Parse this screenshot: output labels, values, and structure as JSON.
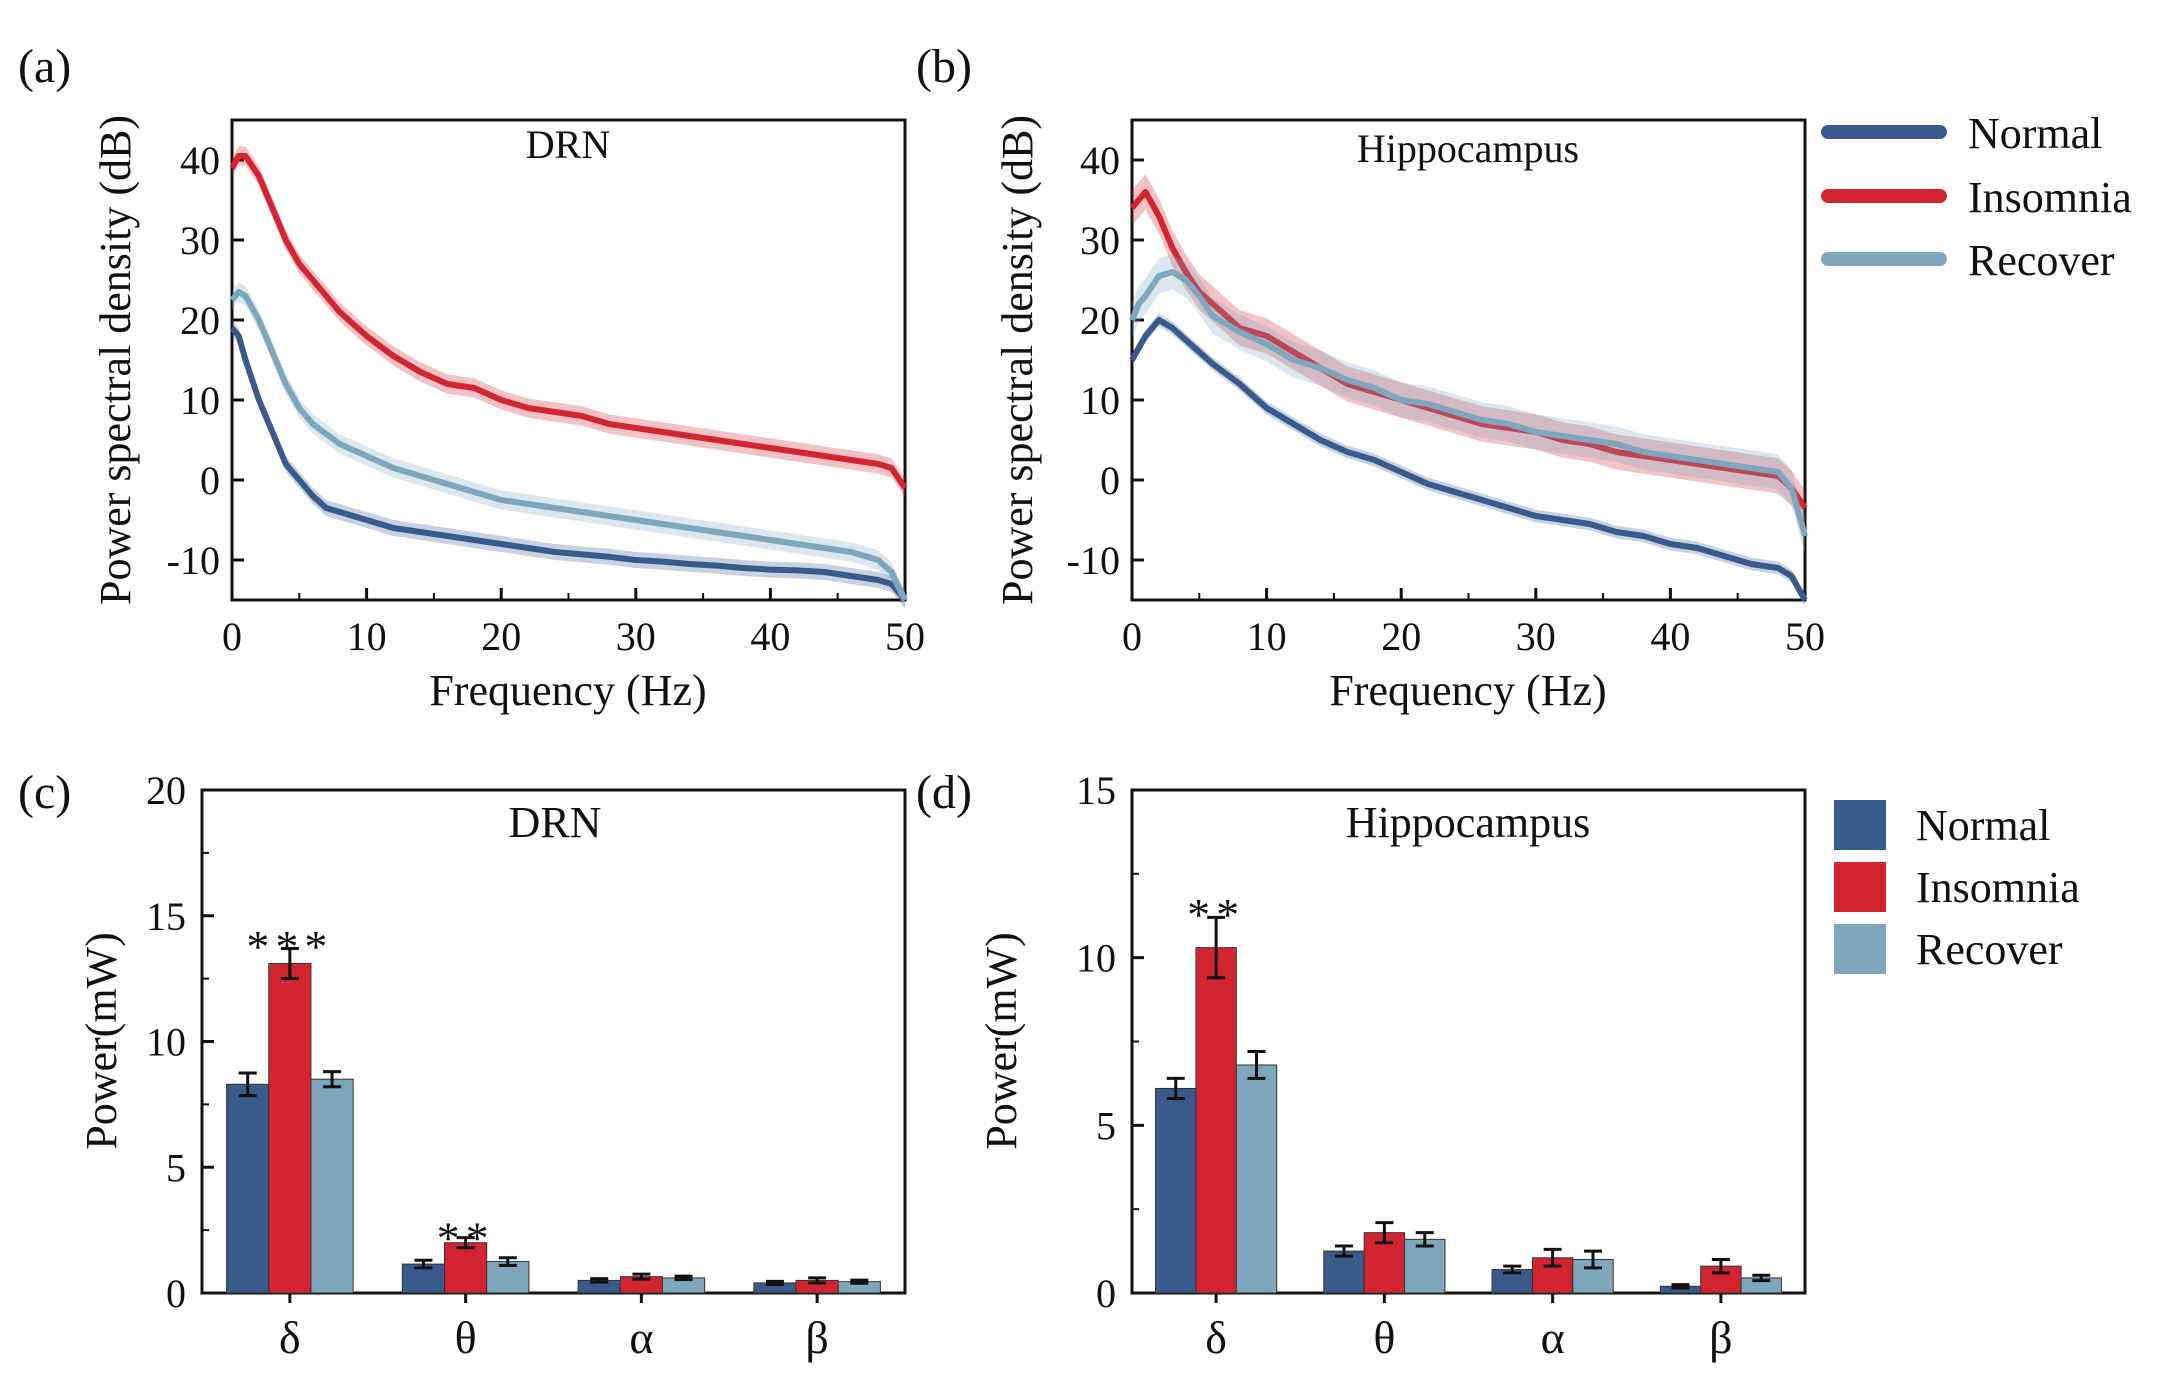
{
  "colors": {
    "normal": "#3b5a8c",
    "insomnia": "#d32531",
    "recover": "#7ea7bd"
  },
  "chart_data": [
    {
      "id": "a",
      "panel_label": "(a)",
      "type": "line",
      "title": "DRN",
      "xlabel": "Frequency (Hz)",
      "ylabel": "Power spectral density (dB)",
      "xlim": [
        0,
        50
      ],
      "ylim": [
        -15,
        45
      ],
      "xticks": [
        0,
        10,
        20,
        30,
        40,
        50
      ],
      "xtick_labels": [
        "0",
        "10",
        "20",
        "30",
        "40",
        "50"
      ],
      "yticks": [
        -10,
        0,
        10,
        20,
        30,
        40
      ],
      "ytick_labels": [
        "-10",
        "0",
        "10",
        "20",
        "30",
        "40"
      ],
      "series": [
        {
          "name": "Normal",
          "color_key": "normal",
          "band": 1.0,
          "x": [
            0,
            0.5,
            1,
            2,
            3,
            4,
            5,
            6,
            7,
            8,
            10,
            12,
            14,
            16,
            18,
            20,
            22,
            24,
            26,
            28,
            30,
            32,
            34,
            36,
            38,
            40,
            42,
            44,
            46,
            48,
            49,
            50
          ],
          "y": [
            19,
            18,
            15,
            10,
            6,
            2,
            0,
            -2,
            -3.5,
            -4,
            -5,
            -6,
            -6.5,
            -7,
            -7.5,
            -8,
            -8.5,
            -9,
            -9.3,
            -9.6,
            -10,
            -10.2,
            -10.5,
            -10.7,
            -11,
            -11.2,
            -11.3,
            -11.5,
            -12,
            -12.5,
            -13,
            -15
          ]
        },
        {
          "name": "Insomnia",
          "color_key": "insomnia",
          "band": 1.2,
          "x": [
            0,
            0.5,
            1,
            2,
            3,
            4,
            5,
            6,
            8,
            10,
            12,
            14,
            16,
            18,
            20,
            22,
            24,
            26,
            28,
            30,
            32,
            34,
            36,
            38,
            40,
            42,
            44,
            46,
            48,
            49,
            50
          ],
          "y": [
            39,
            40.5,
            40.5,
            38,
            34,
            30,
            27,
            25,
            21,
            18,
            15.5,
            13.5,
            12,
            11.5,
            10,
            9,
            8.5,
            8,
            7,
            6.5,
            6,
            5.5,
            5,
            4.5,
            4,
            3.5,
            3,
            2.5,
            2,
            1.5,
            -1
          ]
        },
        {
          "name": "Recover",
          "color_key": "recover",
          "band": 1.2,
          "x": [
            0,
            0.5,
            1,
            2,
            3,
            4,
            5,
            6,
            8,
            10,
            12,
            14,
            16,
            18,
            20,
            22,
            24,
            26,
            28,
            30,
            32,
            34,
            36,
            38,
            40,
            42,
            44,
            46,
            48,
            49,
            50
          ],
          "y": [
            22.5,
            23.5,
            23,
            20,
            16,
            12,
            9,
            7,
            4.5,
            3,
            1.5,
            0.5,
            -0.5,
            -1.5,
            -2.5,
            -3,
            -3.5,
            -4,
            -4.5,
            -5,
            -5.5,
            -6,
            -6.5,
            -7,
            -7.5,
            -8,
            -8.5,
            -9,
            -10,
            -11.5,
            -15
          ]
        }
      ]
    },
    {
      "id": "b",
      "panel_label": "(b)",
      "type": "line",
      "title": "Hippocampus",
      "xlabel": "Frequency (Hz)",
      "ylabel": "Power spectral density (dB)",
      "xlim": [
        0,
        50
      ],
      "ylim": [
        -15,
        45
      ],
      "xticks": [
        0,
        10,
        20,
        30,
        40,
        50
      ],
      "xtick_labels": [
        "0",
        "10",
        "20",
        "30",
        "40",
        "50"
      ],
      "yticks": [
        -10,
        0,
        10,
        20,
        30,
        40
      ],
      "ytick_labels": [
        "-10",
        "0",
        "10",
        "20",
        "30",
        "40"
      ],
      "series": [
        {
          "name": "Normal",
          "color_key": "normal",
          "band": 0.8,
          "x": [
            0,
            0.5,
            1,
            2,
            3,
            4,
            5,
            6,
            8,
            10,
            12,
            14,
            16,
            18,
            20,
            22,
            24,
            26,
            28,
            30,
            32,
            34,
            36,
            38,
            40,
            42,
            44,
            46,
            48,
            49,
            50
          ],
          "y": [
            15,
            16.5,
            18,
            20,
            19,
            17.5,
            16,
            14.5,
            12,
            9,
            7,
            5,
            3.5,
            2.5,
            1,
            -0.5,
            -1.5,
            -2.5,
            -3.5,
            -4.5,
            -5,
            -5.5,
            -6.5,
            -7,
            -8,
            -8.5,
            -9.5,
            -10.5,
            -11,
            -12,
            -15
          ]
        },
        {
          "name": "Insomnia",
          "color_key": "insomnia",
          "band": 2.2,
          "x": [
            0,
            0.5,
            1,
            2,
            3,
            4,
            5,
            6,
            8,
            10,
            12,
            14,
            16,
            18,
            20,
            22,
            24,
            26,
            28,
            30,
            32,
            34,
            36,
            38,
            40,
            42,
            44,
            46,
            48,
            49,
            50
          ],
          "y": [
            34,
            35,
            36,
            33,
            29,
            26,
            23.5,
            22,
            19,
            18,
            16,
            14,
            12,
            11,
            10,
            9,
            8,
            7,
            6.5,
            6,
            5,
            4.5,
            3.5,
            3,
            2.5,
            2,
            1.5,
            1,
            0.5,
            -1,
            -3.5
          ]
        },
        {
          "name": "Recover",
          "color_key": "recover",
          "band": 2.2,
          "x": [
            0,
            0.5,
            1,
            2,
            3,
            4,
            5,
            6,
            8,
            10,
            12,
            14,
            16,
            18,
            20,
            22,
            24,
            26,
            28,
            30,
            32,
            34,
            36,
            38,
            40,
            42,
            44,
            46,
            48,
            49,
            50
          ],
          "y": [
            20,
            22,
            23,
            25.5,
            26,
            25,
            23,
            20.5,
            18.5,
            17,
            15,
            14,
            12.5,
            11.5,
            10,
            9.5,
            8.5,
            7.5,
            7,
            6,
            5.5,
            5,
            4.5,
            3.5,
            3,
            2.5,
            2,
            1.5,
            1,
            -1,
            -7
          ]
        }
      ]
    },
    {
      "id": "c",
      "panel_label": "(c)",
      "type": "bar",
      "title": "DRN",
      "xlabel": "",
      "ylabel": "Power(mW)",
      "ylim": [
        0,
        20
      ],
      "yticks": [
        0,
        5,
        10,
        15,
        20
      ],
      "ytick_labels": [
        "0",
        "5",
        "10",
        "15",
        "20"
      ],
      "categories": [
        "δ",
        "θ",
        "α",
        "β"
      ],
      "series": [
        {
          "name": "Normal",
          "color_key": "normal",
          "values": [
            8.3,
            1.15,
            0.5,
            0.4
          ],
          "errors": [
            0.45,
            0.15,
            0.07,
            0.06
          ]
        },
        {
          "name": "Insomnia",
          "color_key": "insomnia",
          "values": [
            13.1,
            2.0,
            0.65,
            0.5
          ],
          "errors": [
            0.6,
            0.2,
            0.1,
            0.1
          ]
        },
        {
          "name": "Recover",
          "color_key": "recover",
          "values": [
            8.5,
            1.25,
            0.6,
            0.45
          ],
          "errors": [
            0.3,
            0.15,
            0.07,
            0.06
          ]
        }
      ],
      "annotations": [
        {
          "text": "***",
          "category_index": 0,
          "series_index": 1,
          "y": 14.2
        },
        {
          "text": "**",
          "category_index": 1,
          "series_index": 1,
          "y": 2.6
        }
      ]
    },
    {
      "id": "d",
      "panel_label": "(d)",
      "type": "bar",
      "title": "Hippocampus",
      "xlabel": "",
      "ylabel": "Power(mW)",
      "ylim": [
        0,
        15
      ],
      "yticks": [
        0,
        5,
        10,
        15
      ],
      "ytick_labels": [
        "0",
        "5",
        "10",
        "15"
      ],
      "categories": [
        "δ",
        "θ",
        "α",
        "β"
      ],
      "series": [
        {
          "name": "Normal",
          "color_key": "normal",
          "values": [
            6.1,
            1.25,
            0.7,
            0.2
          ],
          "errors": [
            0.3,
            0.15,
            0.1,
            0.05
          ]
        },
        {
          "name": "Insomnia",
          "color_key": "insomnia",
          "values": [
            10.3,
            1.8,
            1.05,
            0.8
          ],
          "errors": [
            0.9,
            0.3,
            0.25,
            0.2
          ]
        },
        {
          "name": "Recover",
          "color_key": "recover",
          "values": [
            6.8,
            1.6,
            1.0,
            0.45
          ],
          "errors": [
            0.4,
            0.2,
            0.25,
            0.08
          ]
        }
      ],
      "annotations": [
        {
          "text": "**",
          "category_index": 0,
          "series_index": 1,
          "y": 11.6
        }
      ]
    }
  ],
  "legends": {
    "lines": {
      "entries": [
        "Normal",
        "Insomnia",
        "Recover"
      ]
    },
    "bars": {
      "entries": [
        "Normal",
        "Insomnia",
        "Recover"
      ]
    }
  }
}
